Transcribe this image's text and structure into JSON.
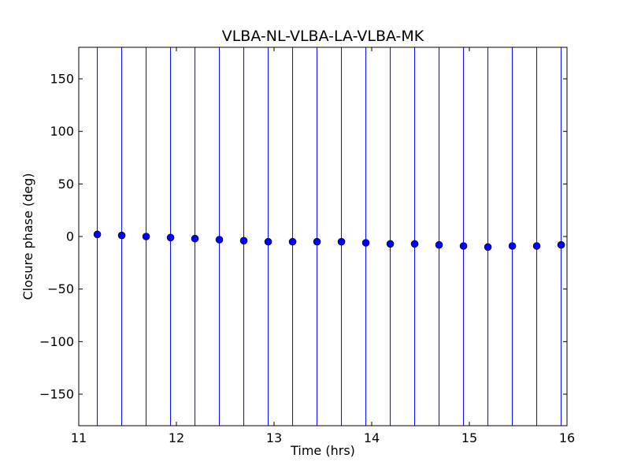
{
  "chart_data": {
    "type": "scatter",
    "title": "VLBA-NL-VLBA-LA-VLBA-MK",
    "xlabel": "Time (hrs)",
    "ylabel": "Closure phase (deg)",
    "xlim": [
      11,
      16
    ],
    "ylim": [
      -180,
      180
    ],
    "xticks": [
      11,
      12,
      13,
      14,
      15,
      16
    ],
    "xtick_labels": [
      "11",
      "12",
      "13",
      "14",
      "15",
      "16"
    ],
    "yticks": [
      150,
      100,
      50,
      0,
      -50,
      -100,
      -150
    ],
    "ytick_labels": [
      "150",
      "100",
      "50",
      "0",
      "−50",
      "−100",
      "−150"
    ],
    "grid": false,
    "colors": {
      "series": "#0000ff",
      "axes": "#000000"
    },
    "error_bars": "full-range vertical lines",
    "points": [
      {
        "x": 11.19,
        "y": 2
      },
      {
        "x": 11.44,
        "y": 1
      },
      {
        "x": 11.69,
        "y": 0
      },
      {
        "x": 11.94,
        "y": -1
      },
      {
        "x": 12.19,
        "y": -2
      },
      {
        "x": 12.44,
        "y": -3
      },
      {
        "x": 12.69,
        "y": -4
      },
      {
        "x": 12.94,
        "y": -5
      },
      {
        "x": 13.19,
        "y": -5
      },
      {
        "x": 13.44,
        "y": -5
      },
      {
        "x": 13.69,
        "y": -5
      },
      {
        "x": 13.94,
        "y": -6
      },
      {
        "x": 14.19,
        "y": -7
      },
      {
        "x": 14.44,
        "y": -7
      },
      {
        "x": 14.69,
        "y": -8
      },
      {
        "x": 14.94,
        "y": -9
      },
      {
        "x": 15.19,
        "y": -10
      },
      {
        "x": 15.44,
        "y": -9
      },
      {
        "x": 15.69,
        "y": -9
      },
      {
        "x": 15.94,
        "y": -8
      }
    ]
  }
}
